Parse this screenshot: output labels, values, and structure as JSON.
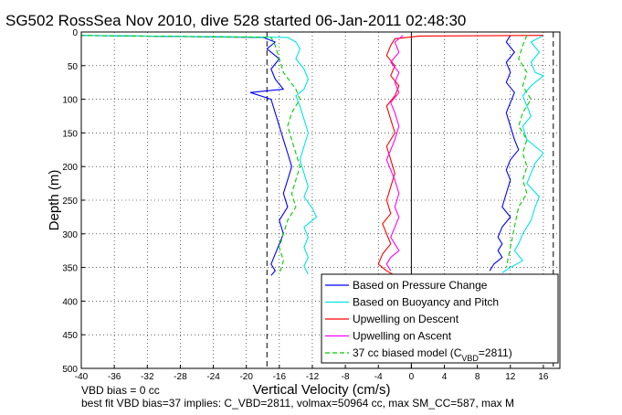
{
  "chart_data": {
    "type": "line",
    "title": "SG502 RossSea Nov 2010, dive 528 started 06-Jan-2011 02:48:30",
    "xlabel": "Vertical Velocity (cm/s)",
    "ylabel": "Depth (m)",
    "xlim": [
      -40,
      18
    ],
    "ylim": [
      0,
      500
    ],
    "y_reversed": true,
    "x_ticks": [
      -40,
      -36,
      -32,
      -28,
      -24,
      -20,
      -16,
      -12,
      -8,
      -4,
      0,
      4,
      8,
      12,
      16
    ],
    "y_ticks": [
      0,
      50,
      100,
      150,
      200,
      250,
      300,
      350,
      400,
      450,
      500
    ],
    "grid": true,
    "legend_position": "bottom-right",
    "vertical_reference_lines": [
      -17.5,
      0,
      17.2
    ],
    "series": [
      {
        "name": "Based on Pressure Change",
        "color": "#0000ff",
        "descent": {
          "x": [
            -41,
            -18,
            -16.5,
            -17.5,
            -16,
            -17,
            -16.5,
            -15.5,
            -19.5,
            -17,
            -16.5,
            -16,
            -15.5,
            -15,
            -14.5,
            -15,
            -15.5,
            -15,
            -16,
            -15.5,
            -16,
            -16.5,
            -17,
            -16.5,
            -17
          ],
          "y": [
            5,
            8,
            15,
            25,
            40,
            55,
            70,
            85,
            90,
            100,
            120,
            140,
            160,
            180,
            200,
            220,
            240,
            260,
            280,
            300,
            315,
            330,
            345,
            355,
            362
          ]
        },
        "ascent": {
          "x": [
            12,
            11.5,
            12.5,
            11.5,
            12,
            11.5,
            12.5,
            12,
            11.5,
            12,
            12.5,
            13,
            12,
            11.5,
            12,
            11.5,
            11,
            12,
            11,
            10.5,
            11,
            10.5,
            11,
            10,
            9.5
          ],
          "y": [
            5,
            15,
            30,
            45,
            60,
            75,
            90,
            105,
            120,
            140,
            160,
            175,
            190,
            205,
            220,
            240,
            260,
            275,
            290,
            305,
            315,
            325,
            335,
            345,
            355
          ]
        }
      },
      {
        "name": "Based on Buoyancy and Pitch",
        "color": "#00e5e5",
        "descent": {
          "x": [
            -41,
            -15,
            -14,
            -13.5,
            -14,
            -13,
            -12.5,
            -13,
            -14,
            -13.5,
            -13,
            -12.5,
            -13,
            -13.5,
            -13,
            -12.5,
            -13,
            -12,
            -11.5,
            -13,
            -12.5,
            -13,
            -12.5,
            -13,
            -12.5
          ],
          "y": [
            5,
            8,
            15,
            25,
            40,
            55,
            70,
            85,
            95,
            110,
            130,
            150,
            170,
            190,
            210,
            230,
            245,
            262,
            275,
            290,
            305,
            320,
            335,
            348,
            360
          ]
        },
        "ascent": {
          "x": [
            16,
            14.5,
            15.5,
            14.5,
            15,
            16,
            14.5,
            13.5,
            14,
            14.5,
            13.5,
            14,
            16,
            15,
            14.5,
            14,
            15.5,
            15,
            14.5,
            13.5,
            13,
            12.5,
            13.5,
            12,
            11
          ],
          "y": [
            5,
            15,
            30,
            45,
            60,
            65,
            80,
            95,
            110,
            125,
            140,
            160,
            180,
            195,
            210,
            225,
            245,
            260,
            280,
            300,
            315,
            325,
            340,
            350,
            358
          ]
        }
      },
      {
        "name": "Upwelling on Descent",
        "color": "#ff0000",
        "x": [
          16,
          1,
          -2,
          -2.5,
          -3,
          -2,
          -2.5,
          -1.5,
          -2,
          -3,
          -2.5,
          -2,
          -3,
          -2.5,
          -2,
          -2.5,
          -3,
          -2.5,
          -3.5,
          -3,
          -2.5,
          -3.5,
          -4,
          -3,
          -2
        ],
        "y": [
          5,
          6,
          10,
          20,
          35,
          50,
          65,
          80,
          95,
          110,
          130,
          150,
          170,
          190,
          210,
          230,
          250,
          270,
          285,
          300,
          315,
          330,
          345,
          355,
          362
        ]
      },
      {
        "name": "Upwelling on Ascent",
        "color": "#ff00ff",
        "x": [
          -1,
          -2,
          -1.5,
          -2.5,
          -1.5,
          -2,
          -1.5,
          -2.5,
          -2,
          -1.5,
          -2,
          -2.5,
          -3,
          -2.5,
          -2,
          -1.5,
          -2,
          -1.5,
          -2,
          -2.5,
          -2,
          -1.5,
          -2.5,
          -3,
          -2.5
        ],
        "y": [
          5,
          15,
          30,
          45,
          60,
          75,
          90,
          105,
          120,
          140,
          160,
          175,
          190,
          205,
          220,
          240,
          260,
          275,
          290,
          305,
          315,
          325,
          335,
          345,
          355
        ]
      },
      {
        "name": "37 cc biased model (C_VBD=2811)",
        "color": "#00cc00",
        "dashed": true,
        "descent": {
          "x": [
            -41,
            -17,
            -16.5,
            -16,
            -15.5,
            -14,
            -13.5,
            -14.5,
            -15,
            -14.5,
            -14,
            -13.5,
            -14,
            -14.5,
            -14,
            -15,
            -15.5,
            -16,
            -15.5,
            -16
          ],
          "y": [
            5,
            8,
            20,
            40,
            60,
            85,
            100,
            120,
            140,
            160,
            180,
            200,
            220,
            240,
            260,
            280,
            300,
            320,
            340,
            360
          ]
        },
        "ascent": {
          "x": [
            14,
            13.5,
            13,
            14,
            13.5,
            14.5,
            13.5,
            13,
            14,
            13.5,
            14,
            13.5,
            14,
            13,
            12.5,
            12,
            11.5
          ],
          "y": [
            5,
            20,
            40,
            60,
            80,
            100,
            120,
            140,
            160,
            180,
            200,
            220,
            240,
            260,
            290,
            320,
            350
          ]
        }
      }
    ]
  },
  "legend": {
    "entries": [
      {
        "label": "Based on Pressure Change",
        "color": "#0000ff",
        "dashed": false
      },
      {
        "label": "Based on Buoyancy and Pitch",
        "color": "#00e5e5",
        "dashed": false
      },
      {
        "label": "Upwelling on Descent",
        "color": "#ff0000",
        "dashed": false
      },
      {
        "label": "Upwelling on Ascent",
        "color": "#ff00ff",
        "dashed": false
      },
      {
        "label": "37 cc biased model (C",
        "sub": "VBD",
        "suffix": "=2811)",
        "color": "#00cc00",
        "dashed": true
      }
    ]
  },
  "notes": {
    "line1": "VBD bias = 0 cc",
    "line2": "best fit VBD bias=37 implies: C_VBD=2811, volmax=50964 cc, max SM_CC=587, max M"
  }
}
